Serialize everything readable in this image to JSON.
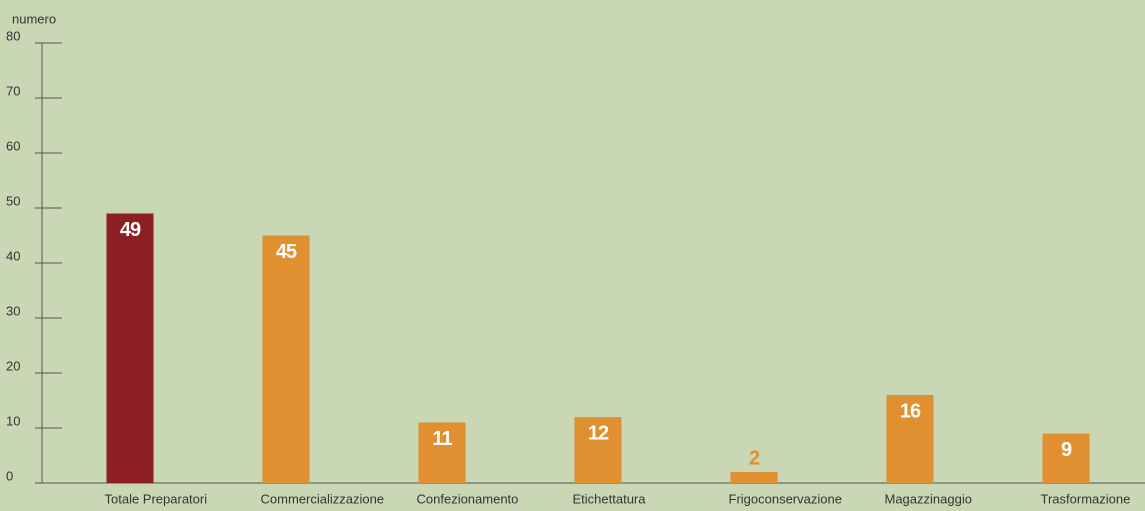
{
  "chart_data": {
    "type": "bar",
    "y_label": "numero",
    "categories": [
      "Totale Preparatori",
      "Commercializzazione",
      "Confezionamento",
      "Etichettatura",
      "Frigoconservazione",
      "Magazzinaggio",
      "Trasformazione"
    ],
    "values": [
      49,
      45,
      11,
      12,
      2,
      16,
      9
    ],
    "colors": [
      "#8b1f24",
      "#e09030",
      "#e09030",
      "#e09030",
      "#e09030",
      "#e09030",
      "#e09030"
    ],
    "ylim": [
      0,
      80
    ],
    "yticks": [
      0,
      10,
      20,
      30,
      40,
      50,
      60,
      70,
      80
    ]
  }
}
